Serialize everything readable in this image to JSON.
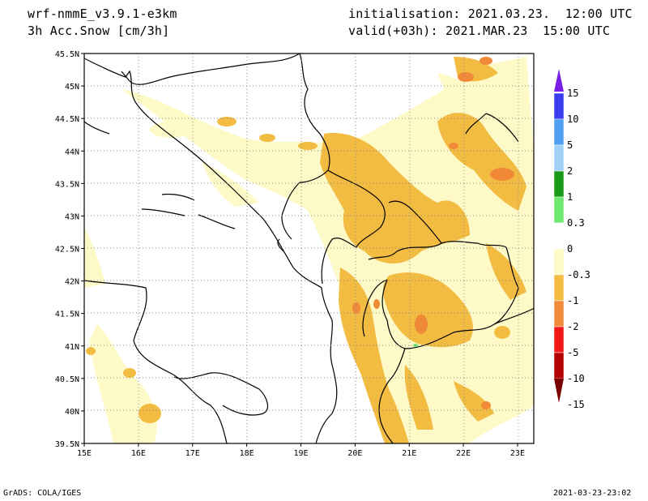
{
  "header": {
    "model": "wrf-nmmE_v3.9.1-e3km",
    "field": "3h Acc.Snow [cm/3h]",
    "init": "initialisation: 2021.03.23.  12:00 UTC",
    "valid": "valid(+03h): 2021.MAR.23  15:00 UTC"
  },
  "axes": {
    "lat_labels": [
      "45.5N",
      "45N",
      "44.5N",
      "44N",
      "43.5N",
      "43N",
      "42.5N",
      "42N",
      "41.5N",
      "41N",
      "40.5N",
      "40N",
      "39.5N"
    ],
    "lon_labels": [
      "15E",
      "16E",
      "17E",
      "18E",
      "19E",
      "20E",
      "21E",
      "22E",
      "23E"
    ],
    "lat_range": [
      39.5,
      45.5
    ],
    "lon_range": [
      15,
      23.3
    ]
  },
  "colorbar": {
    "labels": [
      "15",
      "10",
      "5",
      "2",
      "1",
      "0.3",
      "0",
      "-0.3",
      "-1",
      "-2",
      "-5",
      "-10",
      "-15"
    ],
    "colors": [
      "#7a1fe8",
      "#3b3bf0",
      "#4f9ff0",
      "#a0d0f8",
      "#1a9a1a",
      "#6ee86e",
      "#ffffff",
      "#fefac8",
      "#f2bc42",
      "#f08a38",
      "#f21818",
      "#b20000",
      "#7a0000"
    ]
  },
  "footer": {
    "left": "GrADS: COLA/IGES",
    "right": "2021-03-23-23:02"
  }
}
